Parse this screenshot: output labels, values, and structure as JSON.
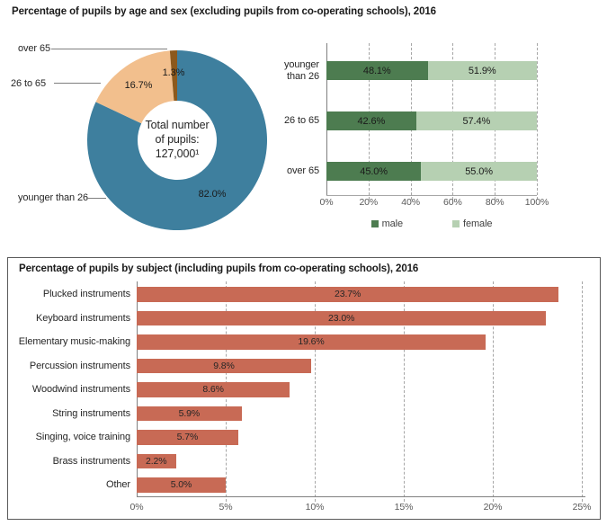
{
  "chart_data": [
    {
      "type": "pie",
      "donut": true,
      "title": "Percentage of pupils by age and sex (excluding pupils from co-operating schools), 2016",
      "center_lines": [
        "Total number",
        "of pupils:",
        "127,000¹"
      ],
      "center_text": "Total number of pupils: 127,000¹",
      "slices": [
        {
          "label": "younger than 26",
          "value": 82.0,
          "display": "82.0%",
          "color": "#3e7f9e"
        },
        {
          "label": "26 to 65",
          "value": 16.7,
          "display": "16.7%",
          "color": "#f2bf8d"
        },
        {
          "label": "over 65",
          "value": 1.3,
          "display": "1.3%",
          "color": "#8c591c"
        }
      ],
      "start_angle": "12-o-clock",
      "direction": "clockwise"
    },
    {
      "type": "bar",
      "orientation": "horizontal",
      "stacked": true,
      "categories": [
        "younger than 26",
        "26 to 65",
        "over 65"
      ],
      "category_lines": [
        [
          "younger",
          "than 26"
        ],
        [
          "26 to 65"
        ],
        [
          "over 65"
        ]
      ],
      "series": [
        {
          "name": "male",
          "color": "#4d7c50",
          "values": [
            48.1,
            42.6,
            45.0
          ],
          "labels": [
            "48.1%",
            "42.6%",
            "45.0%"
          ]
        },
        {
          "name": "female",
          "color": "#b6d0b2",
          "values": [
            51.9,
            57.4,
            55.0
          ],
          "labels": [
            "51.9%",
            "57.4%",
            "55.0%"
          ]
        }
      ],
      "xlim": [
        0,
        100
      ],
      "x_tick_values": [
        0,
        20,
        40,
        60,
        80,
        100
      ],
      "x_tick_labels": [
        "0%",
        "20%",
        "40%",
        "60%",
        "80%",
        "100%"
      ],
      "grid": "vertical-dashed",
      "legend_position": "bottom"
    },
    {
      "type": "bar",
      "orientation": "horizontal",
      "title": "Percentage of pupils by subject (including pupils from co-operating schools), 2016",
      "categories": [
        "Plucked instruments",
        "Keyboard instruments",
        "Elementary music-making",
        "Percussion instruments",
        "Woodwind instruments",
        "String instruments",
        "Singing, voice training",
        "Brass instruments",
        "Other"
      ],
      "values": [
        23.7,
        23.0,
        19.6,
        9.8,
        8.6,
        5.9,
        5.7,
        2.2,
        5.0
      ],
      "value_labels": [
        "23.7%",
        "23.0%",
        "19.6%",
        "9.8%",
        "8.6%",
        "5.9%",
        "5.7%",
        "2.2%",
        "5.0%"
      ],
      "bar_color": "#c86a55",
      "xlim": [
        0,
        25
      ],
      "x_tick_values": [
        0,
        5,
        10,
        15,
        20,
        25
      ],
      "x_tick_labels": [
        "0%",
        "5%",
        "10%",
        "15%",
        "20%",
        "25%"
      ],
      "grid": "vertical-dashed"
    }
  ]
}
